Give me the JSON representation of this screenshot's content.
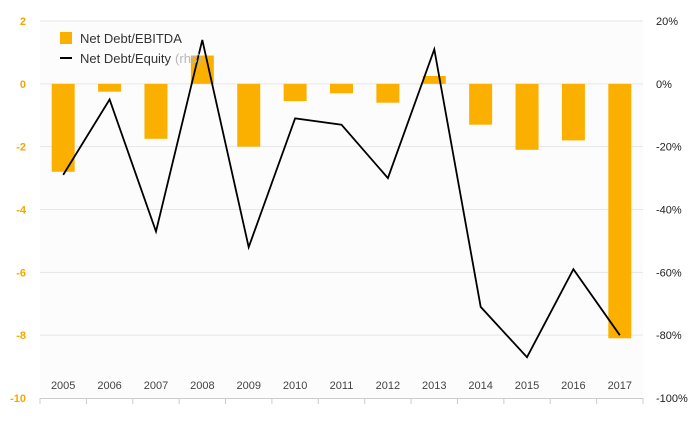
{
  "chart_data": {
    "type": "bar",
    "categories": [
      "2005",
      "2006",
      "2007",
      "2008",
      "2009",
      "2010",
      "2011",
      "2012",
      "2013",
      "2014",
      "2015",
      "2016",
      "2017"
    ],
    "series": [
      {
        "name": "Net Debt/EBITDA",
        "type": "bar",
        "axis": "left",
        "color": "#fbb000",
        "values": [
          -2.8,
          -0.25,
          -1.75,
          0.9,
          -2.0,
          -0.55,
          -0.3,
          -0.6,
          0.25,
          -1.3,
          -2.1,
          -1.8,
          -8.1
        ]
      },
      {
        "name": "Net Debt/Equity",
        "name_suffix": "(rhs)",
        "type": "line",
        "axis": "right",
        "color": "#000000",
        "values": [
          -29,
          -5,
          -47,
          14,
          -52,
          -11,
          -13,
          -30,
          11,
          -71,
          -87,
          -59,
          -80
        ]
      }
    ],
    "y_left": {
      "min": -10,
      "max": 2,
      "ticks": [
        2,
        0,
        -2,
        -4,
        -6,
        -8,
        -10
      ],
      "tick_color": "#f4a900"
    },
    "y_right": {
      "min": -100,
      "max": 20,
      "ticks": [
        "20%",
        "0%",
        "-20%",
        "-40%",
        "-60%",
        "-80%",
        "-100%"
      ]
    },
    "title": "",
    "xlabel": "",
    "ylabel": "",
    "grid": true,
    "legend_position": "top-left"
  }
}
